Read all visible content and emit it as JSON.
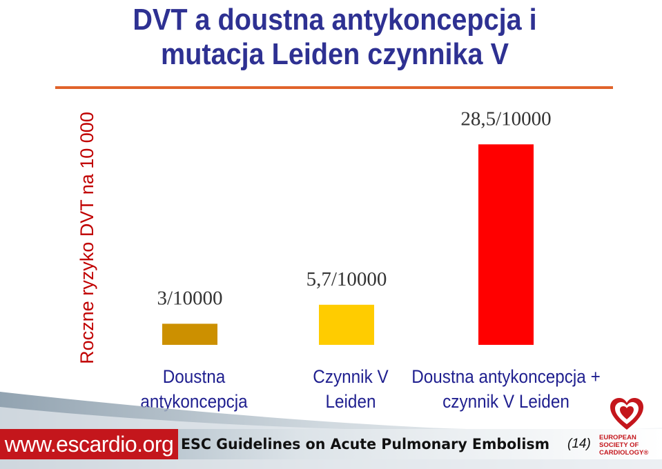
{
  "header": {
    "title_line1": "DVT a doustna antykoncepcja i",
    "title_line2": "mutacja Leiden czynnika V"
  },
  "chart_data": {
    "type": "bar",
    "ylabel": "Roczne ryzyko DVT na 10 000",
    "categories": [
      [
        "Doustna",
        "antykoncepcja"
      ],
      [
        "Czynnik V",
        "Leiden"
      ],
      [
        "Doustna antykoncepcja +",
        "czynnik V Leiden"
      ]
    ],
    "values": [
      3,
      5.7,
      28.5
    ],
    "data_labels": [
      "3/10000",
      "5,7/10000",
      "28,5/10000"
    ],
    "colors": [
      "#cc9000",
      "#ffcc00",
      "#ff0000"
    ],
    "grid": false,
    "legend": "none"
  },
  "footer": {
    "website": "www.escardio.org",
    "guidelines": "ESC Guidelines on Acute Pulmonary Embolism",
    "reference": "(14)",
    "logo_text": [
      "EUROPEAN",
      "SOCIETY OF",
      "CARDIOLOGY®"
    ],
    "logo_icon": "esc-heart-icon",
    "accent_color": "#c4161c"
  }
}
